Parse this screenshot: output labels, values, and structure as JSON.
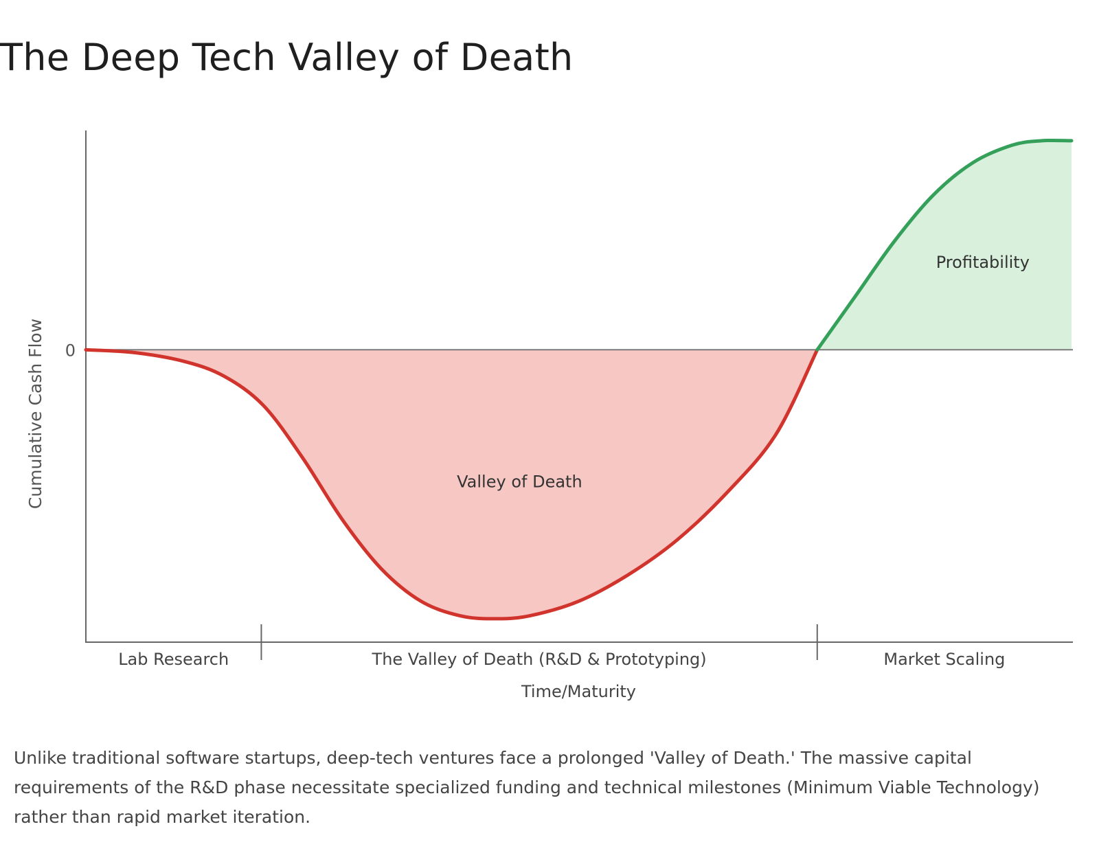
{
  "title": "The Deep Tech Valley of Death",
  "caption": "Unlike traditional software startups, deep-tech ventures face a prolonged 'Valley of Death.' The massive capital requirements of the R&D phase necessitate specialized funding and technical milestones (Minimum Viable Technology) rather than rapid market iteration.",
  "colors": {
    "loss_line": "#d0342c",
    "loss_fill": "#f7c7c4",
    "profit_line": "#34a05a",
    "profit_fill": "#d9f0dc",
    "axis": "#666666",
    "zero_line": "#7a7a7a"
  },
  "chart_data": {
    "type": "area",
    "title": "The Deep Tech Valley of Death",
    "xlabel": "Time/Maturity",
    "ylabel": "Cumulative Cash Flow",
    "y_tick_labels": [
      "0"
    ],
    "xlim": [
      0,
      100
    ],
    "ylim": [
      -100,
      75
    ],
    "grid": false,
    "phases": [
      {
        "label": "Lab Research",
        "start": 0,
        "end": 17.8
      },
      {
        "label": "The Valley of Death (R&D & Prototyping)",
        "start": 17.8,
        "end": 74.2
      },
      {
        "label": "Market Scaling",
        "start": 74.2,
        "end": 100
      }
    ],
    "series": [
      {
        "x": [
          0,
          5,
          10,
          14,
          18,
          22,
          26,
          30,
          34,
          38,
          41.5,
          45,
          50,
          55,
          60,
          65,
          70,
          74.2,
          78,
          82,
          86,
          90,
          94,
          97,
          100
        ],
        "y": [
          0,
          -1,
          -4,
          -9,
          -19,
          -37,
          -58,
          -75,
          -86,
          -91,
          -92,
          -91,
          -86,
          -77,
          -65,
          -49,
          -29,
          0,
          18,
          37,
          53,
          64,
          70,
          71.5,
          71.5
        ]
      }
    ],
    "annotations": [
      {
        "text": "Valley of Death",
        "x": 44,
        "y": -47
      },
      {
        "text": "Profitability",
        "x": 91,
        "y": 28
      }
    ]
  }
}
